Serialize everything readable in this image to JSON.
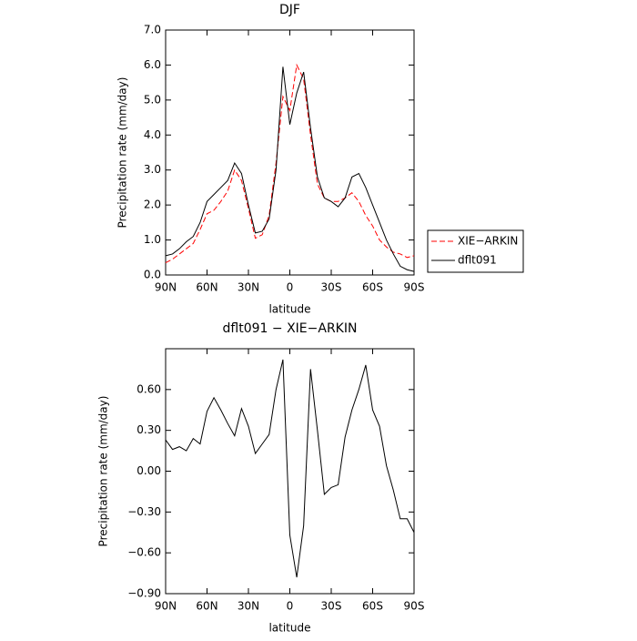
{
  "chart_data": [
    {
      "type": "line",
      "title": "DJF",
      "x_label": "latitude",
      "y_label": "Precipitation rate (mm/day)",
      "x": [
        90,
        85,
        80,
        75,
        70,
        65,
        60,
        55,
        50,
        45,
        40,
        35,
        30,
        25,
        20,
        15,
        10,
        5,
        0,
        -5,
        -10,
        -15,
        -20,
        -25,
        -30,
        -35,
        -40,
        -45,
        -50,
        -55,
        -60,
        -65,
        -70,
        -75,
        -80,
        -85,
        -90
      ],
      "xlim": [
        90,
        -90
      ],
      "xticks": [
        {
          "value": 90,
          "label": "90N"
        },
        {
          "value": 60,
          "label": "60N"
        },
        {
          "value": 30,
          "label": "30N"
        },
        0,
        {
          "value": -30,
          "label": "30S"
        },
        {
          "value": -60,
          "label": "60S"
        },
        {
          "value": -90,
          "label": "90S"
        }
      ],
      "ylim": [
        0,
        7
      ],
      "yticks": [
        {
          "value": 0,
          "label": "0.0"
        },
        {
          "value": 1,
          "label": "1.0"
        },
        {
          "value": 2,
          "label": "2.0"
        },
        {
          "value": 3,
          "label": "3.0"
        },
        {
          "value": 4,
          "label": "4.0"
        },
        {
          "value": 5,
          "label": "5.0"
        },
        {
          "value": 6,
          "label": "6.0"
        },
        {
          "value": 7,
          "label": "7.0"
        }
      ],
      "legend": "right",
      "series": [
        {
          "name": "XIE−ARKIN",
          "color": "#ff0000",
          "dash": true,
          "values": [
            0.35,
            0.45,
            0.6,
            0.75,
            0.9,
            1.3,
            1.75,
            1.85,
            2.1,
            2.4,
            3.0,
            2.7,
            1.9,
            1.05,
            1.15,
            1.7,
            3.2,
            5.1,
            4.7,
            6.0,
            5.6,
            4.0,
            2.6,
            2.2,
            2.1,
            2.1,
            2.2,
            2.35,
            2.1,
            1.7,
            1.4,
            1.0,
            0.8,
            0.65,
            0.6,
            0.5,
            0.55
          ]
        },
        {
          "name": "dflt091",
          "color": "#000000",
          "dash": false,
          "values": [
            0.55,
            0.6,
            0.75,
            0.95,
            1.1,
            1.5,
            2.1,
            2.3,
            2.5,
            2.7,
            3.2,
            2.9,
            2.0,
            1.2,
            1.25,
            1.6,
            3.0,
            5.95,
            4.3,
            5.2,
            5.8,
            4.2,
            2.8,
            2.2,
            2.1,
            1.95,
            2.2,
            2.8,
            2.9,
            2.5,
            2.0,
            1.5,
            1.0,
            0.6,
            0.25,
            0.15,
            0.1
          ]
        }
      ]
    },
    {
      "type": "line",
      "title": "dflt091 − XIE−ARKIN",
      "x_label": "latitude",
      "y_label": "Precipitation rate (mm/day)",
      "x": [
        90,
        85,
        80,
        75,
        70,
        65,
        60,
        55,
        50,
        45,
        40,
        35,
        30,
        25,
        20,
        15,
        10,
        5,
        0,
        -5,
        -10,
        -15,
        -20,
        -25,
        -30,
        -35,
        -40,
        -45,
        -50,
        -55,
        -60,
        -65,
        -70,
        -75,
        -80,
        -85,
        -90
      ],
      "xlim": [
        90,
        -90
      ],
      "xticks": [
        {
          "value": 90,
          "label": "90N"
        },
        {
          "value": 60,
          "label": "60N"
        },
        {
          "value": 30,
          "label": "30N"
        },
        0,
        {
          "value": -30,
          "label": "30S"
        },
        {
          "value": -60,
          "label": "60S"
        },
        {
          "value": -90,
          "label": "90S"
        }
      ],
      "ylim": [
        -0.9,
        0.9
      ],
      "yticks": [
        {
          "value": -0.9,
          "label": "−0.90"
        },
        {
          "value": -0.6,
          "label": "−0.60"
        },
        {
          "value": -0.3,
          "label": "−0.30"
        },
        {
          "value": 0,
          "label": "0.00"
        },
        {
          "value": 0.3,
          "label": "0.30"
        },
        {
          "value": 0.6,
          "label": "0.60"
        }
      ],
      "color": "#000000",
      "values": [
        0.23,
        0.16,
        0.18,
        0.15,
        0.24,
        0.2,
        0.44,
        0.54,
        0.45,
        0.35,
        0.26,
        0.46,
        0.33,
        0.13,
        0.2,
        0.27,
        0.6,
        0.82,
        -0.47,
        -0.78,
        -0.4,
        0.75,
        0.3,
        -0.17,
        -0.12,
        -0.1,
        0.25,
        0.45,
        0.6,
        0.78,
        0.45,
        0.33,
        0.04,
        -0.14,
        -0.35,
        -0.35,
        -0.45
      ]
    }
  ]
}
